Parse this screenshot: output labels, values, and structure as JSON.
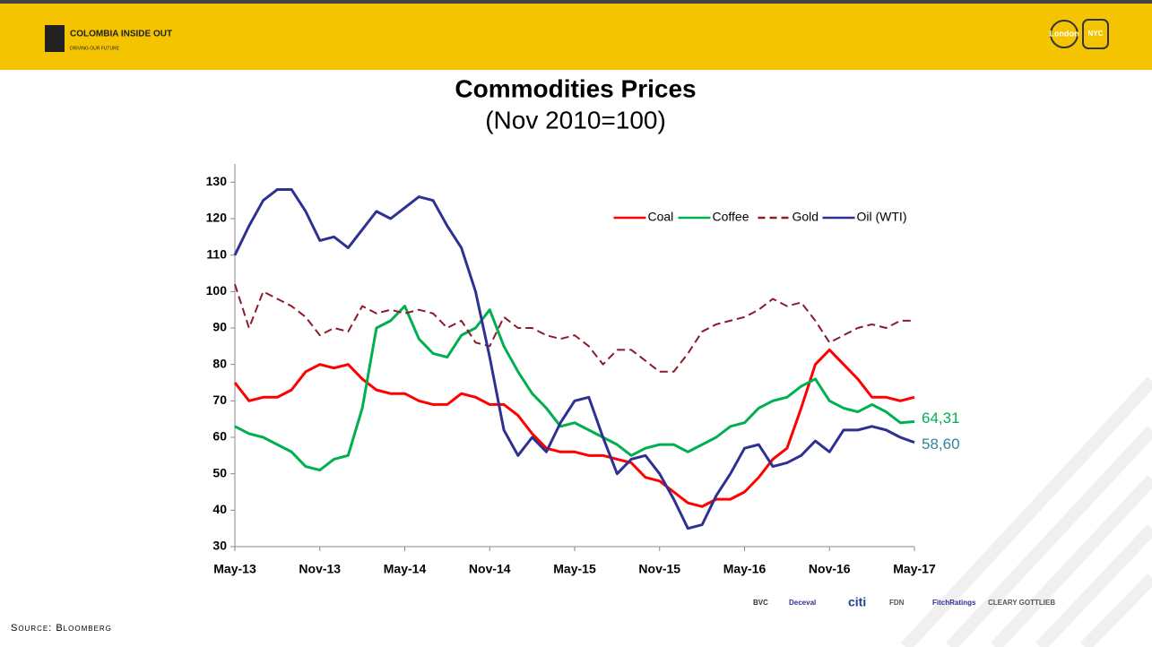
{
  "header": {
    "brand": "COLOMBIA INSIDE OUT",
    "tagline": "DRIVING OUR FUTURE",
    "city1": "London",
    "city2": "NYC"
  },
  "source": "Source: Bloomberg",
  "sponsors": [
    "BVC",
    "Deceval",
    "citi",
    "FDN",
    "FitchRatings",
    "CLEARY GOTTLIEB"
  ],
  "chart_data": {
    "type": "line",
    "title": "Commodities Prices",
    "subtitle": "(Nov 2010=100)",
    "categories": [
      "May-13",
      null,
      null,
      null,
      null,
      null,
      "Nov-13",
      null,
      null,
      null,
      null,
      null,
      "May-14",
      null,
      null,
      null,
      null,
      null,
      "Nov-14",
      null,
      null,
      null,
      null,
      null,
      "May-15",
      null,
      null,
      null,
      null,
      null,
      "Nov-15",
      null,
      null,
      null,
      null,
      null,
      "May-16",
      null,
      null,
      null,
      null,
      null,
      "Nov-16",
      null,
      null,
      null,
      null,
      null,
      "May-17"
    ],
    "ylim": [
      30,
      135
    ],
    "yticks": [
      30,
      40,
      50,
      60,
      70,
      80,
      90,
      100,
      110,
      120,
      130
    ],
    "legend": "top-right",
    "series": [
      {
        "name": "Coal",
        "color": "#ff0000",
        "dash": false,
        "values": [
          75,
          70,
          71,
          71,
          73,
          78,
          80,
          79,
          80,
          76,
          73,
          72,
          72,
          70,
          69,
          69,
          72,
          71,
          69,
          69,
          66,
          61,
          57,
          56,
          56,
          55,
          55,
          54,
          53,
          49,
          48,
          45,
          42,
          41,
          43,
          43,
          45,
          49,
          54,
          57,
          68,
          80,
          84,
          80,
          76,
          71,
          71,
          70,
          71
        ]
      },
      {
        "name": "Coffee",
        "color": "#00b050",
        "dash": false,
        "end_label": "64,31",
        "values": [
          63,
          61,
          60,
          58,
          56,
          52,
          51,
          54,
          55,
          68,
          90,
          92,
          96,
          87,
          83,
          82,
          88,
          90,
          95,
          85,
          78,
          72,
          68,
          63,
          64,
          62,
          60,
          58,
          55,
          57,
          58,
          58,
          56,
          58,
          60,
          63,
          64,
          68,
          70,
          71,
          74,
          76,
          70,
          68,
          67,
          69,
          67,
          64,
          64.31
        ]
      },
      {
        "name": "Gold",
        "color": "#8b1a2b",
        "dash": true,
        "values": [
          102,
          90,
          100,
          98,
          96,
          93,
          88,
          90,
          89,
          96,
          94,
          95,
          94,
          95,
          94,
          90,
          92,
          86,
          85,
          93,
          90,
          90,
          88,
          87,
          88,
          85,
          80,
          84,
          84,
          81,
          78,
          78,
          83,
          89,
          91,
          92,
          93,
          95,
          98,
          96,
          97,
          92,
          86,
          88,
          90,
          91,
          90,
          92,
          92
        ]
      },
      {
        "name": "Oil (WTI)",
        "color": "#2e3192",
        "dash": false,
        "end_label": "58,60",
        "label_color": "#31849b",
        "values": [
          110,
          118,
          125,
          128,
          128,
          122,
          114,
          115,
          112,
          117,
          122,
          120,
          123,
          126,
          125,
          118,
          112,
          100,
          82,
          62,
          55,
          60,
          56,
          64,
          70,
          71,
          60,
          50,
          54,
          55,
          50,
          43,
          35,
          36,
          44,
          50,
          57,
          58,
          52,
          53,
          55,
          59,
          56,
          62,
          62,
          63,
          62,
          60,
          58.6
        ]
      }
    ]
  }
}
